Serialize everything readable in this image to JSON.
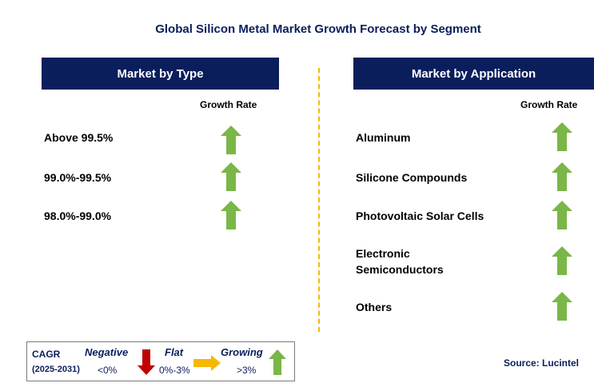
{
  "title": "Global Silicon Metal Market Growth Forecast by Segment",
  "left_panel": {
    "header": "Market by Type",
    "growth_rate_label": "Growth Rate",
    "items": [
      {
        "label": "Above 99.5%",
        "trend": "growing"
      },
      {
        "label": "99.0%-99.5%",
        "trend": "growing"
      },
      {
        "label": "98.0%-99.0%",
        "trend": "growing"
      }
    ]
  },
  "right_panel": {
    "header": "Market by Application",
    "growth_rate_label": "Growth Rate",
    "items": [
      {
        "label": "Aluminum",
        "trend": "growing"
      },
      {
        "label": "Silicone Compounds",
        "trend": "growing"
      },
      {
        "label": "Photovoltaic Solar Cells",
        "trend": "growing"
      },
      {
        "label_line1": "Electronic",
        "label_line2": "Semiconductors",
        "trend": "growing"
      },
      {
        "label": "Others",
        "trend": "growing"
      }
    ]
  },
  "legend": {
    "cagr_label": "CAGR",
    "period": "(2025-2031)",
    "negative_label": "Negative",
    "negative_value": "<0%",
    "flat_label": "Flat",
    "flat_value": "0%-3%",
    "growing_label": "Growing",
    "growing_value": ">3%"
  },
  "source": "Source: Lucintel",
  "colors": {
    "header_bg": "#0a1e5c",
    "divider": "#f5b800",
    "arrow_up": "#7ab648",
    "arrow_down": "#c00000",
    "arrow_right": "#f5b800"
  },
  "icons": {
    "up": "arrow-up-icon",
    "down": "arrow-down-icon",
    "right": "arrow-right-icon"
  }
}
